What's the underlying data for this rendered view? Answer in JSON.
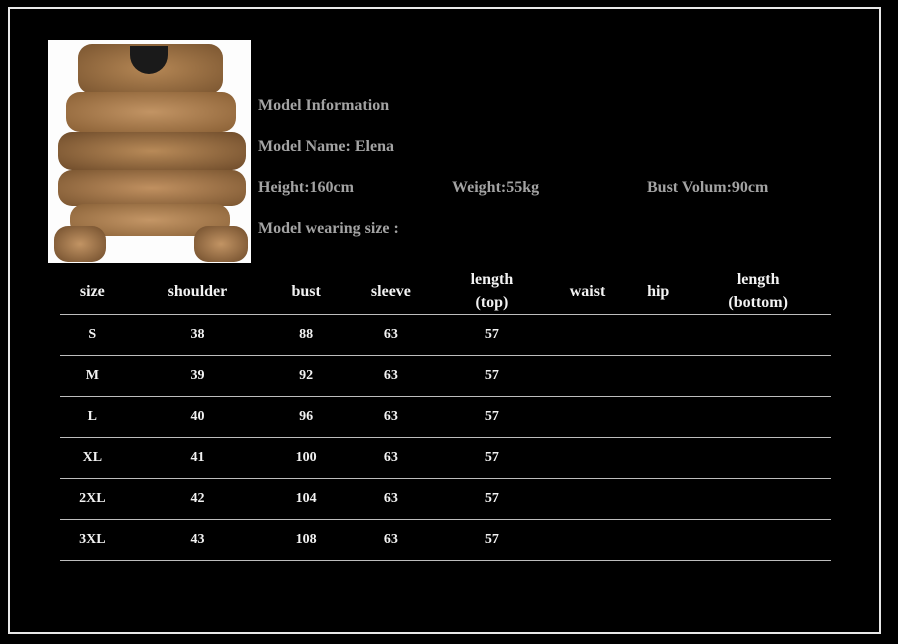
{
  "model": {
    "heading": "Model Information",
    "name": "Model Name: Elena",
    "height": "Height:160cm",
    "weight": "Weight:55kg",
    "bust": "Bust Volum:90cm",
    "wearing_size": "Model wearing size :"
  },
  "photo": {
    "subject": "fur-jacket",
    "color": "#a87a4a"
  },
  "colors": {
    "background": "#000000",
    "info_text": "#a3a3a3",
    "table_text": "#f2f2f2"
  },
  "table": {
    "headers": [
      [
        "size",
        ""
      ],
      [
        "shoulder",
        ""
      ],
      [
        "bust",
        ""
      ],
      [
        "sleeve",
        ""
      ],
      [
        "length",
        "(top)"
      ],
      [
        "waist",
        ""
      ],
      [
        "hip",
        ""
      ],
      [
        "length",
        "(bottom)"
      ]
    ],
    "rows": [
      [
        "S",
        "38",
        "88",
        "63",
        "57",
        "",
        "",
        ""
      ],
      [
        "M",
        "39",
        "92",
        "63",
        "57",
        "",
        "",
        ""
      ],
      [
        "L",
        "40",
        "96",
        "63",
        "57",
        "",
        "",
        ""
      ],
      [
        "XL",
        "41",
        "100",
        "63",
        "57",
        "",
        "",
        ""
      ],
      [
        "2XL",
        "42",
        "104",
        "63",
        "57",
        "",
        "",
        ""
      ],
      [
        "3XL",
        "43",
        "108",
        "63",
        "57",
        "",
        "",
        ""
      ]
    ]
  }
}
